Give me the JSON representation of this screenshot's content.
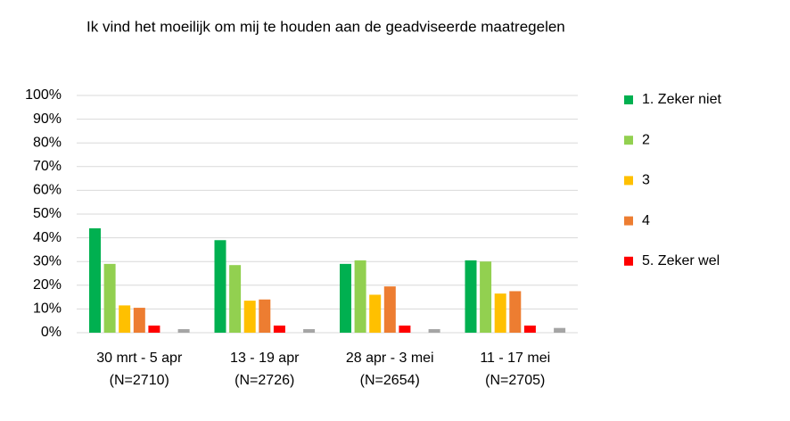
{
  "chart_data": {
    "type": "bar",
    "title": "Ik vind het moeilijk om mij te houden aan de geadviseerde maatregelen",
    "categories": [
      [
        "30 mrt - 5 apr",
        "(N=2710)"
      ],
      [
        "13 - 19 apr",
        "(N=2726)"
      ],
      [
        "28 apr - 3 mei",
        "(N=2654)"
      ],
      [
        "11 - 17 mei",
        "(N=2705)"
      ]
    ],
    "series": [
      {
        "name": "1. Zeker niet",
        "color": "#00b050",
        "values": [
          44,
          39,
          29,
          30.5
        ]
      },
      {
        "name": "2",
        "color": "#92d050",
        "values": [
          29,
          28.5,
          30.5,
          30
        ]
      },
      {
        "name": "3",
        "color": "#ffc000",
        "values": [
          11.5,
          13.5,
          16,
          16.5
        ]
      },
      {
        "name": "4",
        "color": "#ed7d31",
        "values": [
          10.5,
          14,
          19.5,
          17.5
        ]
      },
      {
        "name": "5. Zeker wel",
        "color": "#ff0000",
        "values": [
          3,
          3,
          3,
          3
        ]
      },
      {
        "color": "#a5a5a5",
        "values": [
          1.5,
          1.5,
          1.5,
          2
        ]
      }
    ],
    "ylim": [
      0,
      100
    ],
    "yticks": [
      {
        "value": 0,
        "label": "0%"
      },
      {
        "value": 10,
        "label": "10%"
      },
      {
        "value": 20,
        "label": "20%"
      },
      {
        "value": 30,
        "label": "30%"
      },
      {
        "value": 40,
        "label": "40%"
      },
      {
        "value": 50,
        "label": "50%"
      },
      {
        "value": 60,
        "label": "60%"
      },
      {
        "value": 70,
        "label": "70%"
      },
      {
        "value": 80,
        "label": "80%"
      },
      {
        "value": 90,
        "label": "90%"
      },
      {
        "value": 100,
        "label": "100%"
      }
    ],
    "grid": true,
    "legend": "right"
  }
}
